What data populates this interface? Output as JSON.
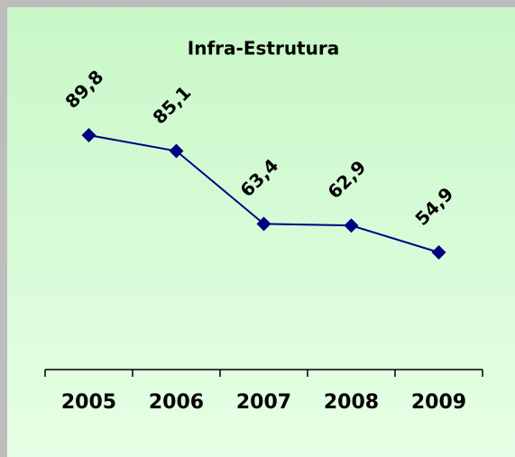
{
  "chart_data": {
    "type": "line",
    "title": "Infra-Estrutura",
    "categories": [
      "2005",
      "2006",
      "2007",
      "2008",
      "2009"
    ],
    "values": [
      89.8,
      85.1,
      63.4,
      62.9,
      54.9
    ],
    "value_labels": [
      "89,8",
      "85,1",
      "63,4",
      "62,9",
      "54,9"
    ],
    "color": "#000080",
    "ylim": [
      20,
      100
    ]
  }
}
